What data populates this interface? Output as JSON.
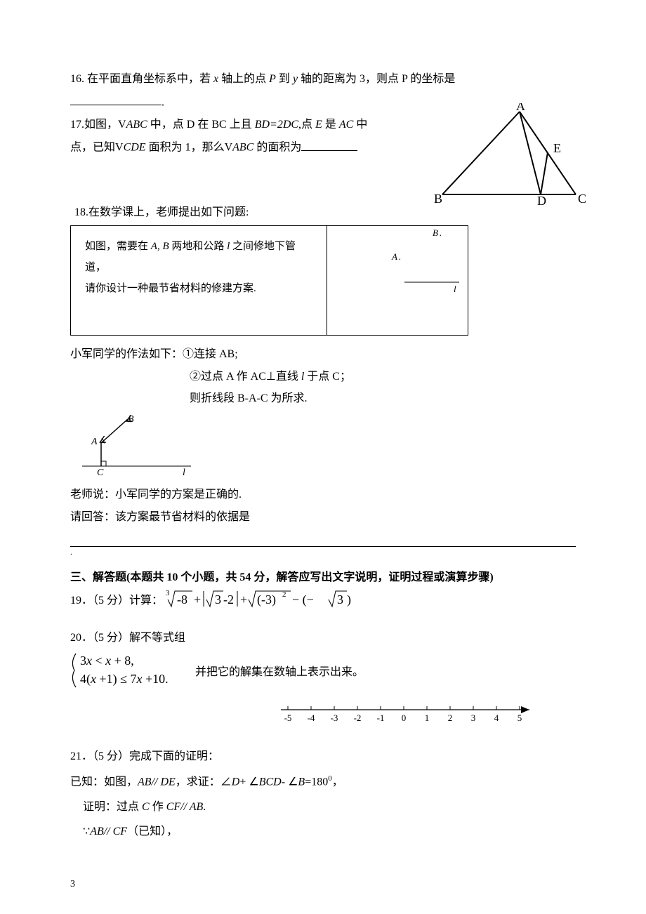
{
  "page_number": "3",
  "q16": {
    "prefix": "16.  在平面直角坐标系中，若 ",
    "x_italic": "x",
    "mid1": " 轴上的点 ",
    "P1": "P",
    "mid2": " 到 ",
    "y_italic": "y",
    "mid3": " 轴的距离为 3，则点 P 的坐标是"
  },
  "q17": {
    "prefix": "17.如图，V",
    "abc1": "ABC",
    "mid1": " 中，点 D 在 BC 上且 ",
    "bd2dc": "BD=2DC",
    "mid2": ",点 ",
    "E": "E",
    "mid3": " 是 ",
    "AC": "AC",
    "mid4": " 中",
    "line2a": "点，已知V",
    "cde": "CDE",
    "line2b": "  面积为 1，那么V",
    "abc2": "ABC",
    "line2c": " 的面积为",
    "triangle": {
      "labels": {
        "A": "A",
        "B": "B",
        "C": "C",
        "D": "D",
        "E": "E"
      },
      "font_family": "Comic Sans MS, cursive",
      "font_size": 18,
      "stroke": "#000000",
      "stroke_width": 2
    }
  },
  "q18": {
    "intro": "18.在数学课上，老师提出如下问题:",
    "box_l1_a": "如图，需要在 ",
    "box_l1_A": "A",
    "box_l1_b": ", ",
    "box_l1_Bi": "B",
    "box_l1_c": " 两地和公路 ",
    "box_l1_l": "l",
    "box_l1_d": " 之间修地下管道，",
    "box_l2": "请你设计一种最节省材料的修建方案.",
    "right_labels": {
      "A": "A",
      "B": "B",
      "l": "l"
    },
    "right_font_size": 13,
    "solution_intro": "小军同学的作法如下：①连接 AB;",
    "step2_a": "②过点 A 作 AC⊥直线 ",
    "step2_l": "l",
    "step2_b": " 于点 C；",
    "step3": "则折线段 B-A-C 为所求.",
    "diagram_small": {
      "labels": {
        "A": "A",
        "B": "B",
        "C": "C",
        "l": "l"
      },
      "font_style": "italic",
      "font_size": 14
    },
    "teacher_says": "老师说：小军同学的方案是正确的.",
    "please_answer": "请回答：该方案最节省材料的依据是"
  },
  "section3_title": "三、解答题(本题共 10 个小题，共 54 分，解答应写出文字说明，证明过程或演算步骤)",
  "q19": {
    "prefix": "19．（5 分）计算：",
    "expression_svg": {
      "parts": {
        "cube_root_index": "3",
        "cube_root_inner": "-8",
        "plus1": "+",
        "abs_inner_root": "3",
        "abs_inner_tail": "-2",
        "plus2": "+",
        "sqrt_inner_base": "(-3)",
        "sqrt_inner_exp": "2",
        "minus": " − (−",
        "last_root_inner": "3",
        "close": ")"
      },
      "font_family": "Times New Roman, serif",
      "font_size": 18
    }
  },
  "q20": {
    "line1": "20．（5 分）解不等式组",
    "system": {
      "row1_a": "3",
      "row1_x1": "x",
      "row1_b": " < ",
      "row1_x2": "x",
      "row1_c": " + 8,",
      "row2_a": "4(",
      "row2_x1": "x",
      "row2_b": " +1) ≤ 7",
      "row2_x2": "x",
      "row2_c": " +10.",
      "font_family": "Times New Roman, serif",
      "font_size": 18
    },
    "tail": "并把它的解集在数轴上表示出来。",
    "numberline": {
      "min": -5,
      "max": 5,
      "ticks": [
        -5,
        -4,
        -3,
        -2,
        -1,
        0,
        1,
        2,
        3,
        4,
        5
      ],
      "font_size": 13,
      "font_family": "Times New Roman, serif",
      "stroke": "#000000"
    }
  },
  "q21": {
    "line1": "21．（5 分）完成下面的证明：",
    "line2_a": "已知：如图，",
    "line2_abde": "AB// DE",
    "line2_b": "，求证：∠",
    "line2_D": "D",
    "line2_c": "+ ∠",
    "line2_BCD": "BCD",
    "line2_d": "- ∠",
    "line2_Bi": "B",
    "line2_e": "=180",
    "line2_sup": "0",
    "line2_f": "，",
    "line3_a": "证明：过点 ",
    "line3_C": "C",
    "line3_b": " 作 ",
    "line3_cfab": "CF// AB",
    "line3_c": ".",
    "line4_a": "∵",
    "line4_abcf": "AB// CF",
    "line4_b": "（已知），"
  }
}
